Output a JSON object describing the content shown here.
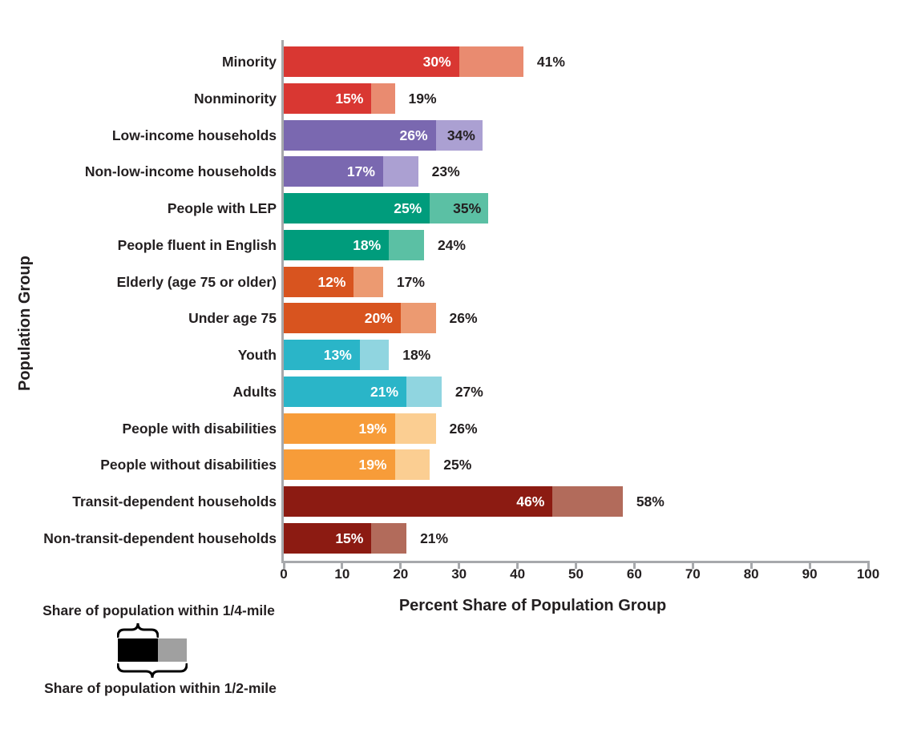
{
  "chart_data": {
    "type": "bar",
    "orientation": "horizontal",
    "title": "",
    "xlabel": "Percent Share of Population Group",
    "ylabel": "Population Group",
    "xlim": [
      0,
      100
    ],
    "xticks": [
      0,
      10,
      20,
      30,
      40,
      50,
      60,
      70,
      80,
      90,
      100
    ],
    "grid": false,
    "axis_color": "#A7A9AC",
    "text_color": "#231F20",
    "legend": {
      "quarter_label": "Share of population within 1/4-mile",
      "half_label": "Share of population within 1/2-mile",
      "quarter_swatch_color": "#000000",
      "half_swatch_color": "#A0A0A0"
    },
    "categories": [
      "Minority",
      "Nonminority",
      "Low-income households",
      "Non-low-income households",
      "People with LEP",
      "People fluent in English",
      "Elderly (age 75 or older)",
      "Under age 75",
      "Youth",
      "Adults",
      "People with disabilities",
      "People without disabilities",
      "Transit-dependent households",
      "Non-transit-dependent households"
    ],
    "series": [
      {
        "name": "Share of population within 1/4-mile",
        "values": [
          30,
          15,
          26,
          17,
          25,
          18,
          12,
          20,
          13,
          21,
          19,
          19,
          46,
          15
        ]
      },
      {
        "name": "Share of population within 1/2-mile",
        "values": [
          41,
          19,
          34,
          23,
          35,
          24,
          17,
          26,
          18,
          27,
          26,
          25,
          58,
          21
        ]
      }
    ],
    "bars": [
      {
        "label": "Minority",
        "quarter": 30,
        "half": 41,
        "color_dark": "#D93732",
        "color_light": "#E98B70",
        "half_label_inside": false
      },
      {
        "label": "Nonminority",
        "quarter": 15,
        "half": 19,
        "color_dark": "#D93732",
        "color_light": "#E98B70",
        "half_label_inside": false
      },
      {
        "label": "Low-income households",
        "quarter": 26,
        "half": 34,
        "color_dark": "#7A68B0",
        "color_light": "#ABA0D2",
        "half_label_inside": true
      },
      {
        "label": "Non-low-income households",
        "quarter": 17,
        "half": 23,
        "color_dark": "#7A68B0",
        "color_light": "#ABA0D2",
        "half_label_inside": false
      },
      {
        "label": "People with LEP",
        "quarter": 25,
        "half": 35,
        "color_dark": "#009C7C",
        "color_light": "#5BC0A4",
        "half_label_inside": true
      },
      {
        "label": "People fluent in English",
        "quarter": 18,
        "half": 24,
        "color_dark": "#009C7C",
        "color_light": "#5BC0A4",
        "half_label_inside": false
      },
      {
        "label": "Elderly (age 75 or older)",
        "quarter": 12,
        "half": 17,
        "color_dark": "#D8541F",
        "color_light": "#EC9A71",
        "half_label_inside": false
      },
      {
        "label": "Under age 75",
        "quarter": 20,
        "half": 26,
        "color_dark": "#D8541F",
        "color_light": "#EC9A71",
        "half_label_inside": false
      },
      {
        "label": "Youth",
        "quarter": 13,
        "half": 18,
        "color_dark": "#2AB5C8",
        "color_light": "#90D5E0",
        "half_label_inside": false
      },
      {
        "label": "Adults",
        "quarter": 21,
        "half": 27,
        "color_dark": "#2AB5C8",
        "color_light": "#90D5E0",
        "half_label_inside": false
      },
      {
        "label": "People with disabilities",
        "quarter": 19,
        "half": 26,
        "color_dark": "#F79C39",
        "color_light": "#FBCE92",
        "half_label_inside": false
      },
      {
        "label": "People without disabilities",
        "quarter": 19,
        "half": 25,
        "color_dark": "#F79C39",
        "color_light": "#FBCE92",
        "half_label_inside": false
      },
      {
        "label": "Transit-dependent households",
        "quarter": 46,
        "half": 58,
        "color_dark": "#8C1B12",
        "color_light": "#B26B5B",
        "half_label_inside": false
      },
      {
        "label": "Non-transit-dependent households",
        "quarter": 15,
        "half": 21,
        "color_dark": "#8C1B12",
        "color_light": "#B26B5B",
        "half_label_inside": false
      }
    ]
  }
}
